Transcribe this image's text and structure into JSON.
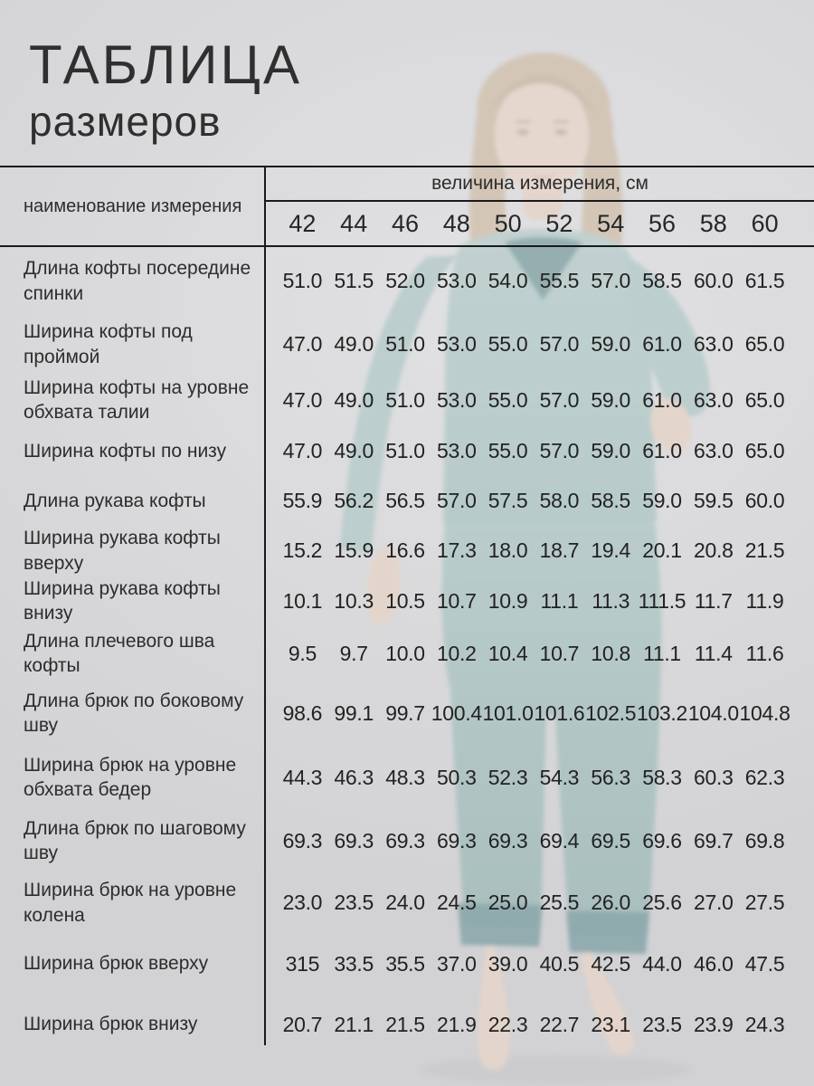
{
  "title": {
    "line1": "ТАБЛИЦА",
    "line2": "размеров"
  },
  "table": {
    "name_header": "наименование измерения",
    "value_header": "величина измерения, см",
    "sizes": [
      "42",
      "44",
      "46",
      "48",
      "50",
      "52",
      "54",
      "56",
      "58",
      "60"
    ],
    "rows": [
      {
        "label": "Длина кофты посередине спинки",
        "values": [
          "51.0",
          "51.5",
          "52.0",
          "53.0",
          "54.0",
          "55.5",
          "57.0",
          "58.5",
          "60.0",
          "61.5"
        ]
      },
      {
        "label": "Ширина кофты под проймой",
        "values": [
          "47.0",
          "49.0",
          "51.0",
          "53.0",
          "55.0",
          "57.0",
          "59.0",
          "61.0",
          "63.0",
          "65.0"
        ]
      },
      {
        "label": "Ширина кофты на уровне обхвата талии",
        "values": [
          "47.0",
          "49.0",
          "51.0",
          "53.0",
          "55.0",
          "57.0",
          "59.0",
          "61.0",
          "63.0",
          "65.0"
        ]
      },
      {
        "label": "Ширина кофты по низу",
        "values": [
          "47.0",
          "49.0",
          "51.0",
          "53.0",
          "55.0",
          "57.0",
          "59.0",
          "61.0",
          "63.0",
          "65.0"
        ]
      },
      {
        "label": "Длина рукава кофты",
        "values": [
          "55.9",
          "56.2",
          "56.5",
          "57.0",
          "57.5",
          "58.0",
          "58.5",
          "59.0",
          "59.5",
          "60.0"
        ]
      },
      {
        "label": "Ширина рукава кофты вверху",
        "values": [
          "15.2",
          "15.9",
          "16.6",
          "17.3",
          "18.0",
          "18.7",
          "19.4",
          "20.1",
          "20.8",
          "21.5"
        ]
      },
      {
        "label": "Ширина рукава кофты внизу",
        "values": [
          "10.1",
          "10.3",
          "10.5",
          "10.7",
          "10.9",
          "11.1",
          "11.3",
          "111.5",
          "11.7",
          "11.9"
        ]
      },
      {
        "label": "Длина плечевого шва кофты",
        "values": [
          "9.5",
          "9.7",
          "10.0",
          "10.2",
          "10.4",
          "10.7",
          "10.8",
          "11.1",
          "11.4",
          "11.6"
        ]
      },
      {
        "label": "Длина брюк по боковому шву",
        "values": [
          "98.6",
          "99.1",
          "99.7",
          "100.4",
          "101.0",
          "101.6",
          "102.5",
          "103.2",
          "104.0",
          "104.8"
        ]
      },
      {
        "label": "Ширина брюк на уровне обхвата бедер",
        "values": [
          "44.3",
          "46.3",
          "48.3",
          "50.3",
          "52.3",
          "54.3",
          "56.3",
          "58.3",
          "60.3",
          "62.3"
        ]
      },
      {
        "label": "Длина брюк по шаговому шву",
        "values": [
          "69.3",
          "69.3",
          "69.3",
          "69.3",
          "69.3",
          "69.4",
          "69.5",
          "69.6",
          "69.7",
          "69.8"
        ]
      },
      {
        "label": "Ширина брюк на уровне колена",
        "values": [
          "23.0",
          "23.5",
          "24.0",
          "24.5",
          "25.0",
          "25.5",
          "26.0",
          "25.6",
          "27.0",
          "27.5"
        ]
      },
      {
        "label": "Ширина брюк вверху",
        "values": [
          "315",
          "33.5",
          "35.5",
          "37.0",
          "39.0",
          "40.5",
          "42.5",
          "44.0",
          "46.0",
          "47.5"
        ]
      },
      {
        "label": "Ширина брюк внизу",
        "values": [
          "20.7",
          "21.1",
          "21.5",
          "21.9",
          "22.3",
          "22.7",
          "23.1",
          "23.5",
          "23.9",
          "24.3"
        ]
      }
    ]
  },
  "photo": {
    "description": "женщина в бирюзовой пижаме"
  },
  "colors": {
    "background_gray": "#d6d6d8",
    "line_black": "#1a1a1a",
    "text_dark": "#2d2d2d",
    "pajama_top_teal": "#a7c6c3",
    "pajama_pants_teal": "#8bb0ac",
    "lace_teal": "#5a888b",
    "skin": "#e9d0be",
    "hair_blonde": "#cdb79c"
  }
}
